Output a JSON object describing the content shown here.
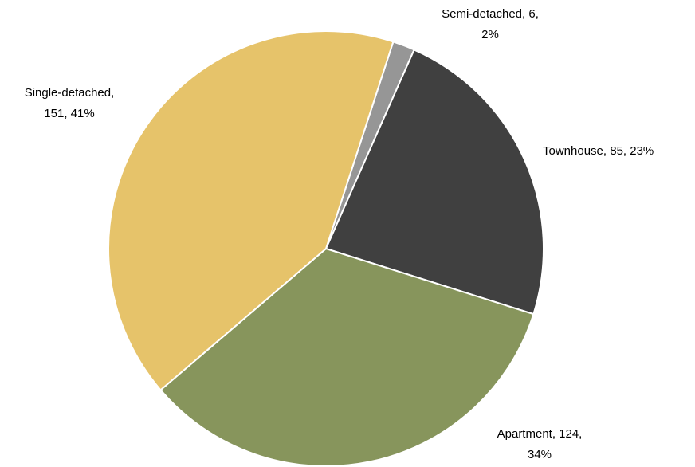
{
  "chart_data": {
    "type": "pie",
    "categories": [
      "Semi-detached",
      "Townhouse",
      "Apartment",
      "Single-detached"
    ],
    "values": [
      6,
      85,
      124,
      151
    ],
    "value_labels": [
      [
        "Semi-detached, 6,",
        "2%"
      ],
      [
        "Townhouse, 85, 23%"
      ],
      [
        "Apartment, 124,",
        "34%"
      ],
      [
        "Single-detached,",
        "151, 41%"
      ]
    ],
    "colors": [
      "#969696",
      "#404040",
      "#87955c",
      "#e6c36a"
    ]
  }
}
